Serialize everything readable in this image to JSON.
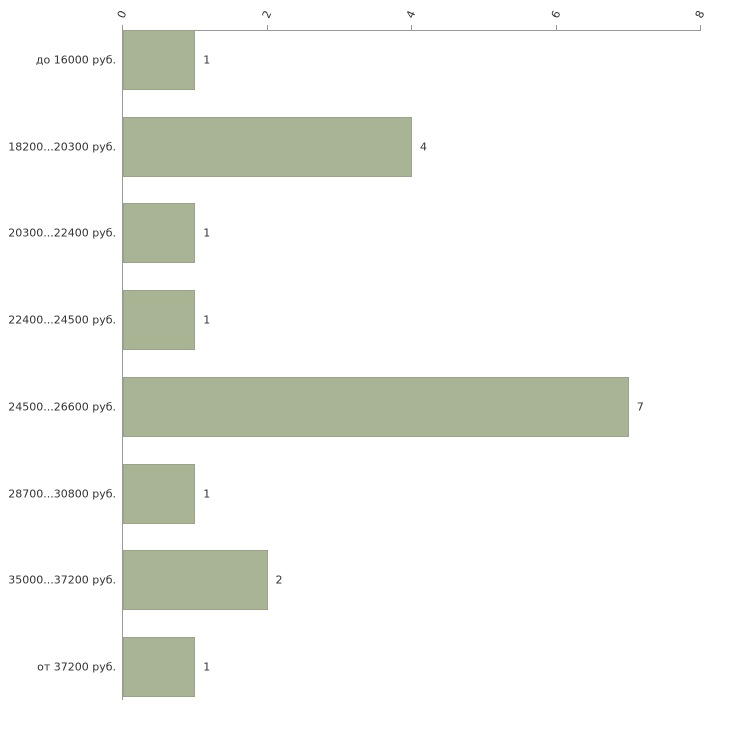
{
  "chart_data": {
    "type": "bar",
    "orientation": "horizontal",
    "title": "",
    "categories": [
      "до 16000 руб.",
      "18200...20300 руб.",
      "20300...22400 руб.",
      "22400...24500 руб.",
      "24500...26600 руб.",
      "28700...30800 руб.",
      "35000...37200 руб.",
      "от 37200 руб."
    ],
    "values": [
      1,
      4,
      1,
      1,
      7,
      1,
      2,
      1
    ],
    "value_labels": [
      "1",
      "4",
      "1",
      "1",
      "7",
      "1",
      "2",
      "1"
    ],
    "xlim": [
      0,
      8
    ],
    "xticks": [
      0,
      2,
      4,
      6,
      8
    ],
    "xtick_labels": [
      "0",
      "2",
      "4",
      "6",
      "8"
    ],
    "grid": false,
    "legend": "none",
    "axis_position": "top-left",
    "colors": {
      "bar_fill": "#a9b494",
      "bar_border": "#9aa588",
      "axis": "#999999",
      "text": "#333333",
      "background": "#ffffff"
    }
  }
}
